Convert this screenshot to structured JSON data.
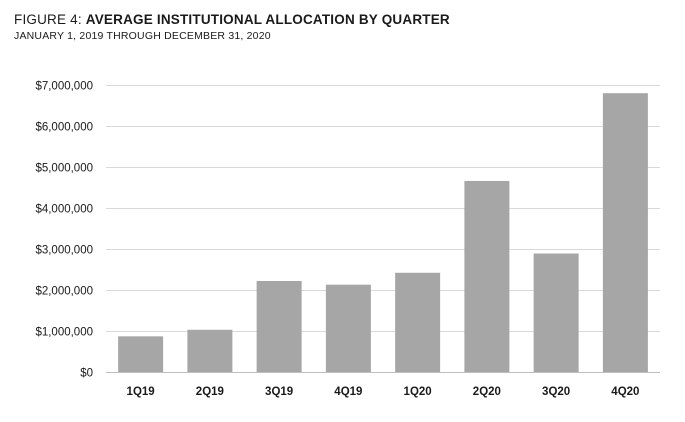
{
  "figure": {
    "prefix": "FIGURE 4: ",
    "title": "AVERAGE INSTITUTIONAL ALLOCATION BY QUARTER",
    "subtitle": "JANUARY 1, 2019 THROUGH DECEMBER 31, 2020"
  },
  "colors": {
    "bar": "#a6a6a6",
    "grid": "#d9d9d9",
    "axis": "#bfbfbf"
  },
  "chart_data": {
    "type": "bar",
    "title": "AVERAGE INSTITUTIONAL ALLOCATION BY QUARTER",
    "subtitle": "JANUARY 1, 2019 THROUGH DECEMBER 31, 2020",
    "categories": [
      "1Q19",
      "2Q19",
      "3Q19",
      "4Q19",
      "1Q20",
      "2Q20",
      "3Q20",
      "4Q20"
    ],
    "values": [
      870000,
      1030000,
      2220000,
      2130000,
      2420000,
      4660000,
      2890000,
      6800000
    ],
    "ylim": [
      0,
      7000000
    ],
    "yticks": [
      0,
      1000000,
      2000000,
      3000000,
      4000000,
      5000000,
      6000000,
      7000000
    ],
    "ytick_labels": [
      "$0",
      "$1,000,000",
      "$2,000,000",
      "$3,000,000",
      "$4,000,000",
      "$5,000,000",
      "$6,000,000",
      "$7,000,000"
    ],
    "xlabel": "",
    "ylabel": "",
    "grid": true,
    "legend": "none"
  }
}
